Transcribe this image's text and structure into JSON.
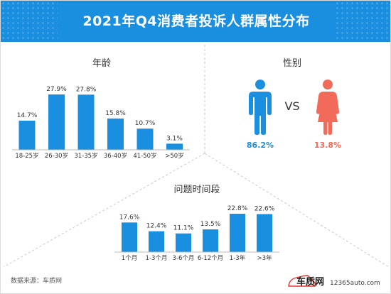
{
  "title": "2021年Q4消费者投诉人群属性分布",
  "colors": {
    "bar": "#1a8fe0",
    "male": "#1a8fe0",
    "female": "#f26a5a",
    "header": "#1a8fe0"
  },
  "chart_data": [
    {
      "type": "bar",
      "title": "年龄",
      "categories": [
        "18-25岁",
        "26-30岁",
        "31-35岁",
        "36-40岁",
        "41-50岁",
        ">50岁"
      ],
      "values": [
        14.7,
        27.9,
        27.8,
        15.8,
        10.7,
        3.1
      ],
      "value_labels": [
        "14.7%",
        "27.9%",
        "27.8%",
        "15.8%",
        "10.7%",
        "3.1%"
      ],
      "ylim": [
        0,
        27.9
      ]
    },
    {
      "type": "pie",
      "title": "性别",
      "categories": [
        "male",
        "female"
      ],
      "icons": [
        "male-person-icon",
        "female-person-icon"
      ],
      "values": [
        86.2,
        13.8
      ],
      "value_labels": [
        "86.2%",
        "13.8%"
      ],
      "separator": "VS"
    },
    {
      "type": "bar",
      "title": "问题时间段",
      "categories": [
        "1个月",
        "1-3个月",
        "3-6个月",
        "6-12个月",
        "1-3年",
        ">3年"
      ],
      "values": [
        17.6,
        12.4,
        11.1,
        13.5,
        22.8,
        22.6
      ],
      "value_labels": [
        "17.6%",
        "12.4%",
        "11.1%",
        "13.5%",
        "22.8%",
        "22.6%"
      ],
      "ylim": [
        0,
        22.8
      ]
    }
  ],
  "footer": {
    "source": "数据来源：车质网",
    "logo": "车质网",
    "site": "12365auto.com"
  }
}
